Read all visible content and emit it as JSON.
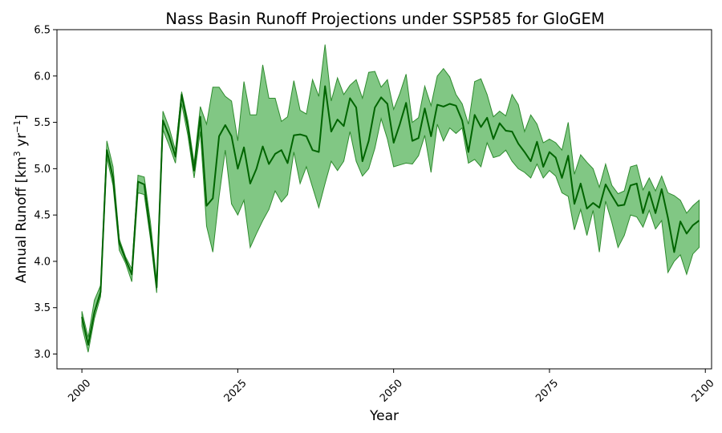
{
  "chart_data": {
    "type": "line",
    "title": "Nass Basin Runoff Projections under SSP585 for GloGEM",
    "xlabel": "Year",
    "ylabel_main": "Annual Runoff [km",
    "ylabel_sup1": "3",
    "ylabel_mid": " yr",
    "ylabel_sup2": "−1",
    "ylabel_end": "]",
    "xlim": [
      1996,
      2101
    ],
    "ylim": [
      2.84,
      6.5
    ],
    "xticks": [
      2000,
      2025,
      2050,
      2075,
      2100
    ],
    "yticks": [
      3.0,
      3.5,
      4.0,
      4.5,
      5.0,
      5.5,
      6.0,
      6.5
    ],
    "ytick_labels": [
      "3.0",
      "3.5",
      "4.0",
      "4.5",
      "5.0",
      "5.5",
      "6.0",
      "6.5"
    ],
    "grid": false,
    "colors": {
      "line": "#006400",
      "band": "#4caf50"
    },
    "series": [
      {
        "x": [
          2000,
          2001,
          2002,
          2003,
          2004,
          2005,
          2006,
          2007,
          2008,
          2009,
          2010,
          2011,
          2012,
          2013,
          2014,
          2015,
          2016,
          2017,
          2018,
          2019,
          2020,
          2021,
          2022,
          2023,
          2024,
          2025,
          2026,
          2027,
          2028,
          2029,
          2030,
          2031,
          2032,
          2033,
          2034,
          2035,
          2036,
          2037,
          2038,
          2039,
          2040,
          2041,
          2042,
          2043,
          2044,
          2045,
          2046,
          2047,
          2048,
          2049,
          2050,
          2051,
          2052,
          2053,
          2054,
          2055,
          2056,
          2057,
          2058,
          2059,
          2060,
          2061,
          2062,
          2063,
          2064,
          2065,
          2066,
          2067,
          2068,
          2069,
          2070,
          2071,
          2072,
          2073,
          2074,
          2075,
          2076,
          2077,
          2078,
          2079,
          2080,
          2081,
          2082,
          2083,
          2084,
          2085,
          2086,
          2087,
          2088,
          2089,
          2090,
          2091,
          2092,
          2093,
          2094,
          2095,
          2096,
          2097,
          2098,
          2099
        ],
        "mean": [
          3.4,
          3.1,
          3.45,
          3.67,
          5.2,
          4.9,
          4.2,
          4.02,
          3.86,
          4.86,
          4.83,
          4.3,
          3.72,
          5.52,
          5.35,
          5.13,
          5.8,
          5.45,
          4.98,
          5.56,
          4.6,
          4.68,
          5.35,
          5.47,
          5.35,
          5.0,
          5.23,
          4.84,
          5.0,
          5.24,
          5.05,
          5.16,
          5.2,
          5.06,
          5.36,
          5.37,
          5.35,
          5.2,
          5.18,
          5.89,
          5.4,
          5.53,
          5.46,
          5.76,
          5.66,
          5.08,
          5.3,
          5.66,
          5.77,
          5.7,
          5.28,
          5.48,
          5.71,
          5.3,
          5.33,
          5.65,
          5.35,
          5.69,
          5.67,
          5.7,
          5.68,
          5.52,
          5.18,
          5.58,
          5.45,
          5.55,
          5.32,
          5.49,
          5.41,
          5.4,
          5.27,
          5.18,
          5.08,
          5.29,
          5.02,
          5.18,
          5.12,
          4.9,
          5.14,
          4.62,
          4.84,
          4.57,
          4.63,
          4.58,
          4.83,
          4.71,
          4.6,
          4.61,
          4.82,
          4.84,
          4.52,
          4.75,
          4.52,
          4.78,
          4.47,
          4.1,
          4.43,
          4.3,
          4.39,
          4.44
        ],
        "lower": [
          3.3,
          3.02,
          3.38,
          3.62,
          5.12,
          4.82,
          4.12,
          3.98,
          3.78,
          4.74,
          4.72,
          4.24,
          3.66,
          5.42,
          5.25,
          5.06,
          5.7,
          5.36,
          4.9,
          5.4,
          4.38,
          4.1,
          4.7,
          5.2,
          4.62,
          4.5,
          4.66,
          4.15,
          4.3,
          4.44,
          4.56,
          4.76,
          4.64,
          4.72,
          5.18,
          4.84,
          5.02,
          4.8,
          4.58,
          4.84,
          5.08,
          4.98,
          5.08,
          5.4,
          5.08,
          4.92,
          5.0,
          5.22,
          5.54,
          5.32,
          5.02,
          5.04,
          5.06,
          5.05,
          5.14,
          5.36,
          4.96,
          5.48,
          5.3,
          5.44,
          5.38,
          5.44,
          5.06,
          5.1,
          5.02,
          5.28,
          5.12,
          5.14,
          5.2,
          5.08,
          5.0,
          4.96,
          4.9,
          5.05,
          4.9,
          4.98,
          4.92,
          4.74,
          4.7,
          4.34,
          4.56,
          4.28,
          4.55,
          4.1,
          4.65,
          4.42,
          4.15,
          4.28,
          4.5,
          4.48,
          4.37,
          4.55,
          4.35,
          4.44,
          3.88,
          4.0,
          4.07,
          3.86,
          4.08,
          4.15
        ],
        "upper": [
          3.46,
          3.18,
          3.58,
          3.74,
          5.3,
          5.02,
          4.24,
          4.05,
          3.92,
          4.93,
          4.91,
          4.42,
          3.78,
          5.62,
          5.44,
          5.2,
          5.83,
          5.52,
          5.06,
          5.67,
          5.48,
          5.88,
          5.88,
          5.78,
          5.73,
          5.3,
          5.94,
          5.58,
          5.58,
          6.12,
          5.76,
          5.76,
          5.51,
          5.56,
          5.95,
          5.63,
          5.59,
          5.96,
          5.78,
          6.34,
          5.73,
          5.98,
          5.8,
          5.9,
          5.96,
          5.76,
          6.04,
          6.05,
          5.88,
          5.96,
          5.64,
          5.81,
          6.02,
          5.5,
          5.55,
          5.89,
          5.68,
          6.0,
          6.08,
          5.99,
          5.8,
          5.7,
          5.48,
          5.94,
          5.97,
          5.8,
          5.56,
          5.62,
          5.57,
          5.8,
          5.69,
          5.4,
          5.58,
          5.48,
          5.28,
          5.32,
          5.28,
          5.2,
          5.5,
          4.94,
          5.15,
          5.07,
          5.0,
          4.8,
          5.05,
          4.82,
          4.73,
          4.76,
          5.02,
          5.04,
          4.77,
          4.9,
          4.76,
          4.92,
          4.74,
          4.71,
          4.66,
          4.52,
          4.6,
          4.66
        ]
      }
    ]
  }
}
